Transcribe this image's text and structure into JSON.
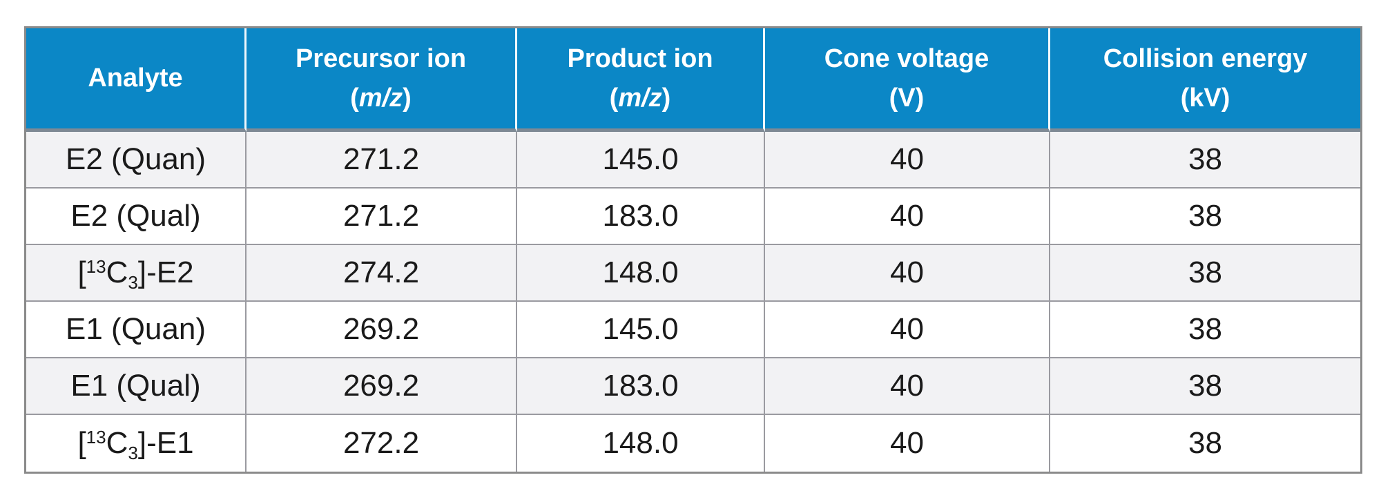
{
  "table": {
    "description": "MRM transition parameters table",
    "colors": {
      "header_bg": "#0b87c6",
      "header_text": "#ffffff",
      "header_divider": "#7e8994",
      "header_cell_separator": "#eef8fd",
      "stripe_row_bg": "#f2f2f4",
      "plain_row_bg": "#ffffff",
      "grid_border": "#9a9aa0",
      "outer_border": "#8a8a8a",
      "body_text": "#1a1a1a"
    },
    "header": {
      "analyte": {
        "title": "Analyte"
      },
      "precursor": {
        "title": "Precursor ion",
        "unit_open": "(",
        "unit_italic": "m/z",
        "unit_close": ")"
      },
      "product": {
        "title": "Product ion",
        "unit_open": "(",
        "unit_italic": "m/z",
        "unit_close": ")"
      },
      "cone": {
        "title": "Cone voltage",
        "unit_open": "(",
        "unit_plain": "V",
        "unit_close": ")"
      },
      "collision": {
        "title": "Collision energy",
        "unit_open": "(",
        "unit_plain": "kV",
        "unit_close": ")"
      }
    },
    "rows": [
      {
        "analyte": {
          "pre": "E2 (Quan)"
        },
        "precursor": "271.2",
        "product": "145.0",
        "cone": "40",
        "collision": "38"
      },
      {
        "analyte": {
          "pre": "E2 (Qual)"
        },
        "precursor": "271.2",
        "product": "183.0",
        "cone": "40",
        "collision": "38"
      },
      {
        "analyte": {
          "pre": "[",
          "sup": "13",
          "mid": "C",
          "sub": "3",
          "post": "]-E2"
        },
        "precursor": "274.2",
        "product": "148.0",
        "cone": "40",
        "collision": "38"
      },
      {
        "analyte": {
          "pre": "E1 (Quan)"
        },
        "precursor": "269.2",
        "product": "145.0",
        "cone": "40",
        "collision": "38"
      },
      {
        "analyte": {
          "pre": "E1 (Qual)"
        },
        "precursor": "269.2",
        "product": "183.0",
        "cone": "40",
        "collision": "38"
      },
      {
        "analyte": {
          "pre": "[",
          "sup": "13",
          "mid": "C",
          "sub": "3",
          "post": "]-E1"
        },
        "precursor": "272.2",
        "product": "148.0",
        "cone": "40",
        "collision": "38"
      }
    ]
  }
}
